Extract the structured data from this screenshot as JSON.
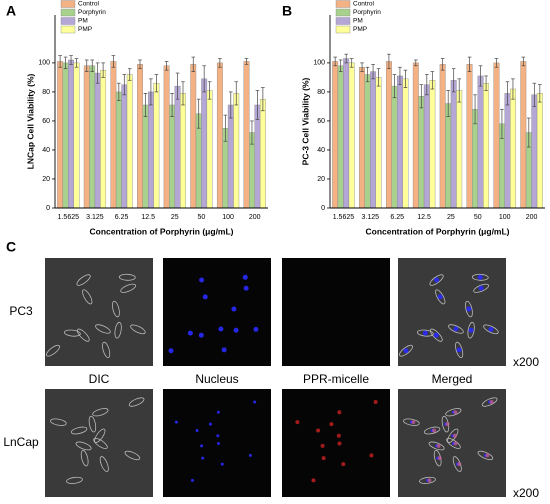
{
  "chart_data": [
    {
      "type": "bar",
      "panel_label": "A",
      "y_label": "LNCap Cell Viability (%)",
      "x_label": "Concentration of Porphyrin (μg/mL)",
      "categories": [
        "1.5625",
        "3.125",
        "6.25",
        "12.5",
        "25",
        "50",
        "100",
        "200"
      ],
      "ylim": [
        0,
        133
      ],
      "yticks": [
        0,
        20,
        40,
        60,
        80,
        100
      ],
      "legend": "upper left",
      "series": [
        {
          "name": "Control",
          "color": "#f4b183",
          "values": [
            101,
            98,
            101,
            99,
            98,
            99,
            100,
            101
          ],
          "errors": [
            4,
            4,
            4,
            3,
            3,
            5,
            3,
            2
          ]
        },
        {
          "name": "Porphyrin",
          "color": "#a9d18e",
          "values": [
            100,
            98,
            80,
            71,
            71,
            65,
            55,
            52
          ],
          "errors": [
            4,
            4,
            6,
            8,
            8,
            10,
            9,
            8
          ]
        },
        {
          "name": "PM",
          "color": "#b4a7d6",
          "values": [
            102,
            93,
            85,
            80,
            84,
            89,
            71,
            71
          ],
          "errors": [
            3,
            7,
            7,
            9,
            9,
            9,
            9,
            10
          ]
        },
        {
          "name": "PMP",
          "color": "#ffff99",
          "values": [
            100,
            95,
            92,
            86,
            79,
            81,
            79,
            75
          ],
          "errors": [
            3,
            5,
            4,
            6,
            8,
            6,
            8,
            8
          ]
        }
      ]
    },
    {
      "type": "bar",
      "panel_label": "B",
      "y_label": "PC-3 Cell Viability (%)",
      "x_label": "Concentration of Porphyrin (μg/mL)",
      "categories": [
        "1.5625",
        "3.125",
        "6.25",
        "12.5",
        "25",
        "50",
        "100",
        "200"
      ],
      "ylim": [
        0,
        133
      ],
      "yticks": [
        0,
        20,
        40,
        60,
        80,
        100
      ],
      "legend": "upper left",
      "series": [
        {
          "name": "Control",
          "color": "#f4b183",
          "values": [
            101,
            97,
            101,
            100,
            99,
            99,
            100,
            101
          ],
          "errors": [
            3,
            3,
            5,
            2,
            4,
            5,
            3,
            3
          ]
        },
        {
          "name": "Porphyrin",
          "color": "#a9d18e",
          "values": [
            98,
            92,
            84,
            77,
            72,
            68,
            58,
            52
          ],
          "errors": [
            4,
            5,
            8,
            8,
            9,
            10,
            10,
            10
          ]
        },
        {
          "name": "PM",
          "color": "#b4a7d6",
          "values": [
            103,
            94,
            91,
            85,
            88,
            91,
            79,
            78
          ],
          "errors": [
            3,
            5,
            6,
            7,
            8,
            7,
            8,
            8
          ]
        },
        {
          "name": "PMP",
          "color": "#ffff99",
          "values": [
            100,
            90,
            89,
            88,
            81,
            86,
            82,
            79
          ],
          "errors": [
            3,
            6,
            6,
            6,
            8,
            5,
            7,
            6
          ]
        }
      ]
    }
  ],
  "figure_c": {
    "label": "C",
    "rows": [
      "PC3",
      "LnCap"
    ],
    "columns": [
      "DIC",
      "Nucleus",
      "PPR-micelle",
      "Merged"
    ],
    "magnification": [
      "x200",
      "x200"
    ]
  }
}
